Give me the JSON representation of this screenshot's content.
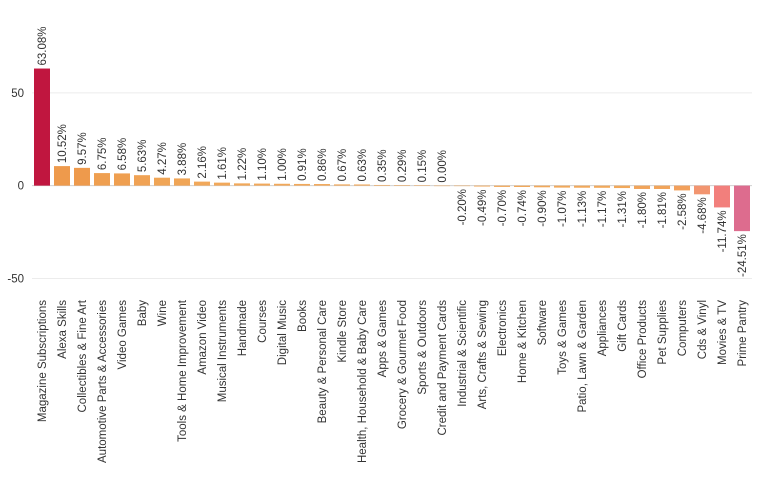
{
  "chart_data": {
    "type": "bar",
    "categories": [
      "Magazine Subscriptions",
      "Alexa Skills",
      "Collectibles & Fine Art",
      "Automotive Parts & Accessories",
      "Video Games",
      "Baby",
      "Wine",
      "Tools & Home Improvement",
      "Amazon Video",
      "Musical Instruments",
      "Handmade",
      "Courses",
      "Digital Music",
      "Books",
      "Beauty & Personal Care",
      "Kindle Store",
      "Health, Household & Baby Care",
      "Apps & Games",
      "Grocery & Gourmet Food",
      "Sports & Outdoors",
      "Credit and Payment Cards",
      "Industrial & Scientific",
      "Arts, Crafts & Sewing",
      "Electronics",
      "Home & Kitchen",
      "Software",
      "Toys & Games",
      "Patio, Lawn & Garden",
      "Appliances",
      "Gift Cards",
      "Office Products",
      "Pet Supplies",
      "Computers",
      "Cds & Vinyl",
      "Movies & TV",
      "Prime Pantry"
    ],
    "values": [
      63.08,
      10.52,
      9.57,
      6.75,
      6.58,
      5.63,
      4.27,
      3.88,
      2.16,
      1.61,
      1.22,
      1.1,
      1.0,
      0.91,
      0.86,
      0.67,
      0.63,
      0.35,
      0.29,
      0.15,
      0.0,
      -0.2,
      -0.49,
      -0.7,
      -0.74,
      -0.9,
      -1.07,
      -1.13,
      -1.17,
      -1.31,
      -1.8,
      -1.81,
      -2.58,
      -4.68,
      -11.74,
      -24.51
    ],
    "value_labels": [
      "63.08%",
      "10.52%",
      "9.57%",
      "6.75%",
      "6.58%",
      "5.63%",
      "4.27%",
      "3.88%",
      "2.16%",
      "1.61%",
      "1.22%",
      "1.10%",
      "1.00%",
      "0.91%",
      "0.86%",
      "0.67%",
      "0.63%",
      "0.35%",
      "0.29%",
      "0.15%",
      "0.00%",
      "-0.20%",
      "-0.49%",
      "-0.70%",
      "-0.74%",
      "-0.90%",
      "-1.07%",
      "-1.13%",
      "-1.17%",
      "-1.31%",
      "-1.80%",
      "-1.81%",
      "-2.58%",
      "-4.68%",
      "-11.74%",
      "-24.51%"
    ],
    "colors": [
      "#c0163f",
      "#ee9a4c",
      "#ee9a4c",
      "#ef9f50",
      "#ef9f50",
      "#f0a254",
      "#f0a556",
      "#f0a556",
      "#f1a85a",
      "#f1a85a",
      "#f1a85a",
      "#f1a85a",
      "#f1a85a",
      "#f1a85a",
      "#f1a85a",
      "#f1a85a",
      "#f1a85a",
      "#f1a85a",
      "#f1a85a",
      "#f1a85a",
      "#f1a85a",
      "#f1a85a",
      "#f1a85a",
      "#f1a85a",
      "#f1a85a",
      "#f1a85a",
      "#f1a85a",
      "#f1a85a",
      "#f1a85a",
      "#f1a85a",
      "#f1a45a",
      "#f1a45a",
      "#f2a05c",
      "#f29570",
      "#f27f7c",
      "#dd6c8e"
    ],
    "ylim": [
      -60,
      100
    ],
    "yticks": [
      -50,
      0,
      50
    ],
    "grid": true
  }
}
